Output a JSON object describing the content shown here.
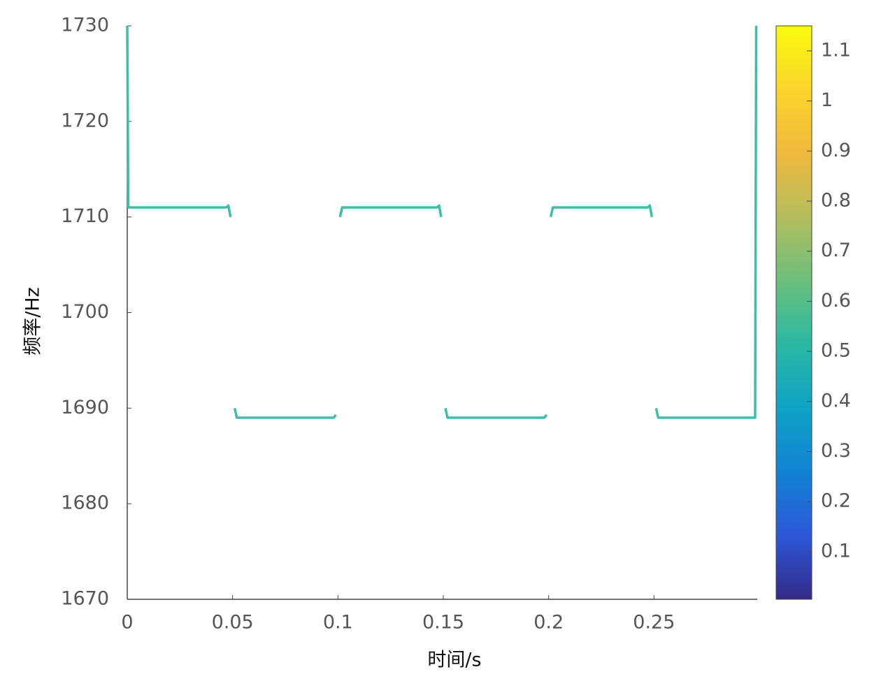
{
  "chart_data": {
    "type": "line",
    "xlabel": "时间/s",
    "ylabel": "频率/Hz",
    "x": [
      0,
      0.0005,
      0.002,
      0.047,
      0.048,
      0.049,
      0.05,
      0.051,
      0.052,
      0.098,
      0.099,
      0.1,
      0.101,
      0.102,
      0.147,
      0.148,
      0.149,
      0.15,
      0.151,
      0.152,
      0.198,
      0.199,
      0.2,
      0.201,
      0.202,
      0.247,
      0.248,
      0.249,
      0.25,
      0.251,
      0.252,
      0.297,
      0.2975,
      0.298,
      0.2985
    ],
    "series": [
      {
        "color": "#3cbfa8",
        "values": [
          1730,
          1711,
          1711,
          1711,
          1711.2,
          1710,
          null,
          1690,
          1689,
          1689,
          1689.3,
          null,
          1710,
          1711,
          1711,
          1711.2,
          1710,
          null,
          1690,
          1689,
          1689,
          1689.3,
          null,
          1710,
          1711,
          1711,
          1711.2,
          1710,
          null,
          1690,
          1689,
          1689,
          1689,
          1689,
          1730
        ]
      }
    ],
    "xlim": [
      0,
      0.299
    ],
    "xticks": [
      0,
      0.05,
      0.1,
      0.15,
      0.2,
      0.25
    ],
    "ylim": [
      1670,
      1730
    ],
    "yticks": [
      1670,
      1680,
      1690,
      1700,
      1710,
      1720,
      1730
    ],
    "grid": false,
    "colorbar": {
      "clim": [
        0.005,
        1.15
      ],
      "ticks": [
        0.1,
        0.2,
        0.3,
        0.4,
        0.5,
        0.6,
        0.7,
        0.8,
        0.9,
        1,
        1.1
      ],
      "colormap": [
        "#352a87",
        "#2c57d8",
        "#1283d4",
        "#0ea3c5",
        "#2ab8a4",
        "#6bbf7c",
        "#b4bd5d",
        "#f0b93e",
        "#fbd52b",
        "#f9fb0e"
      ]
    }
  }
}
